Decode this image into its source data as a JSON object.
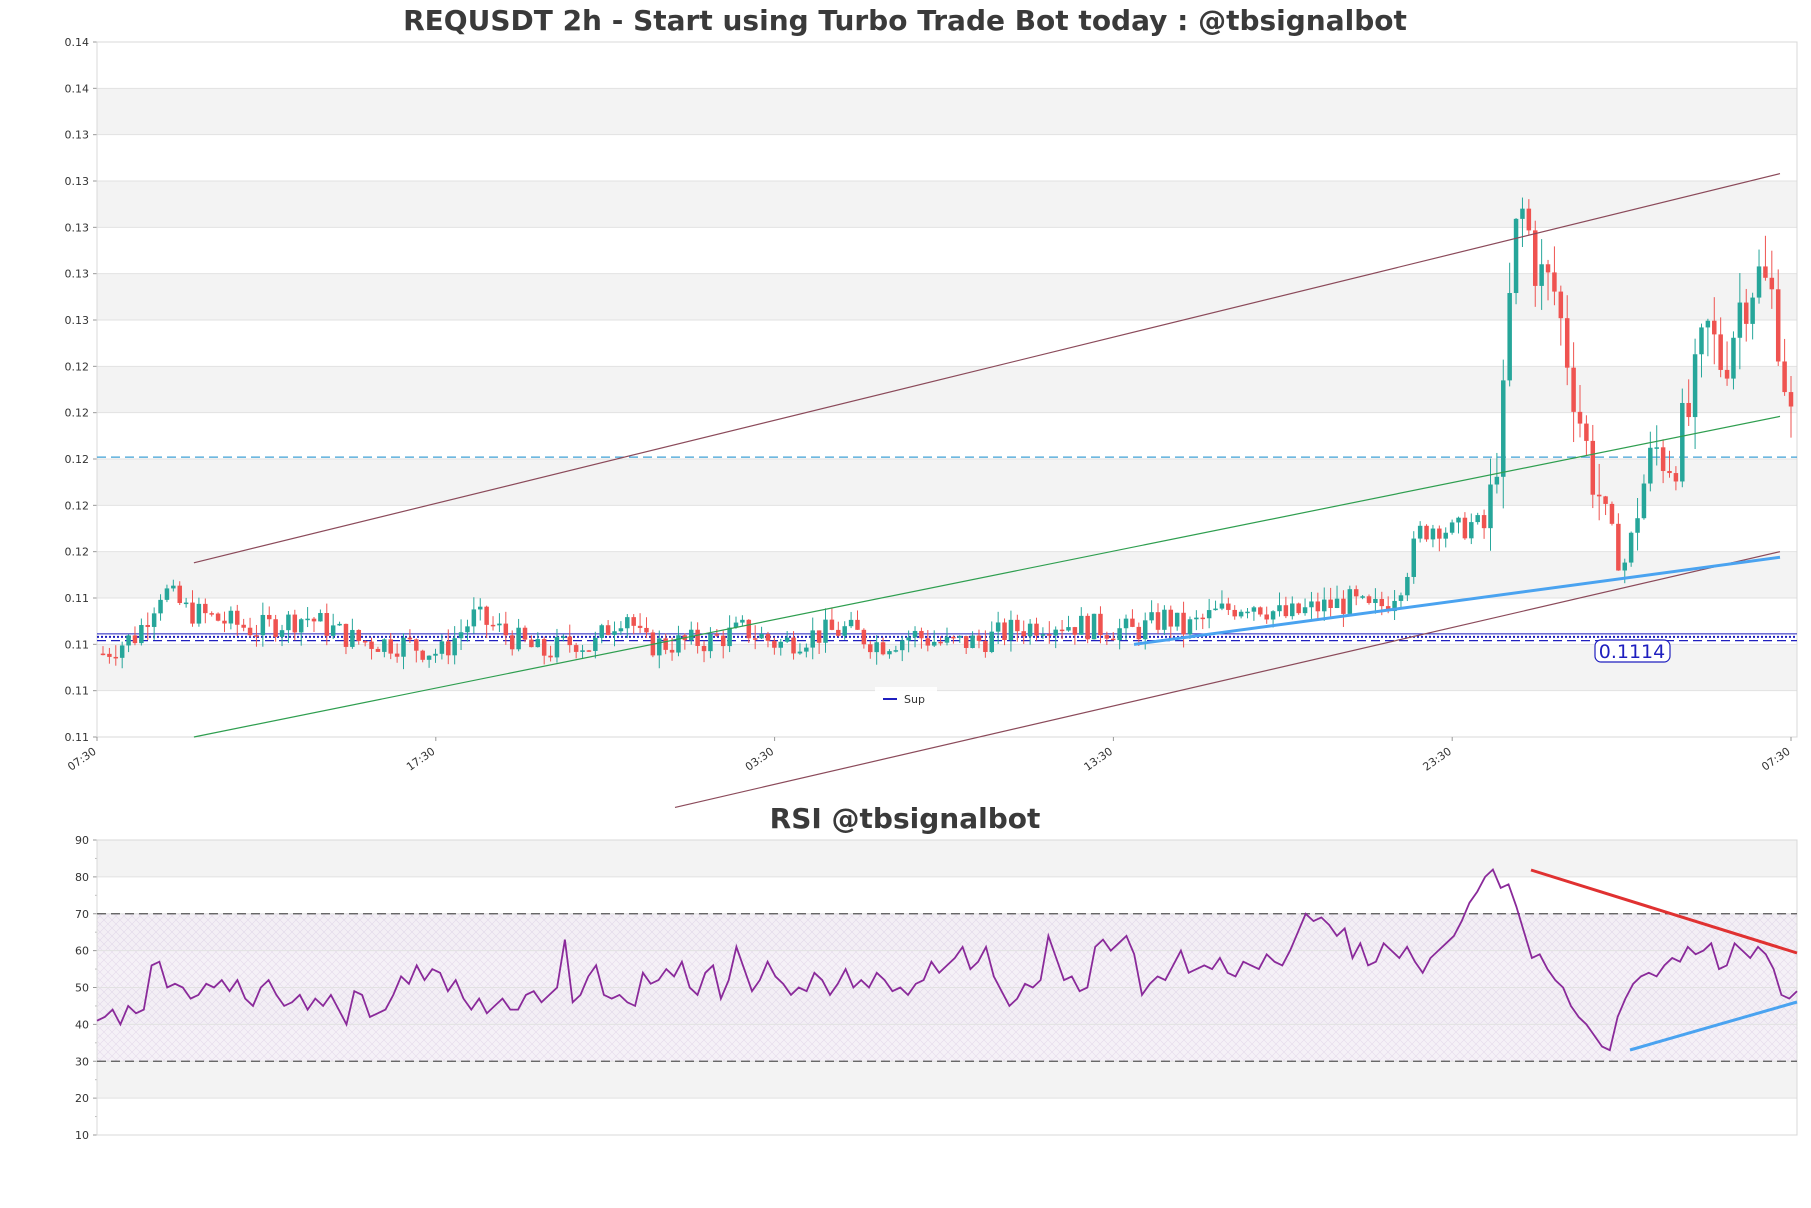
{
  "chart_data": [
    {
      "type": "candlestick",
      "title": "REQUSDT 2h - Start using Turbo Trade Bot today : @tbsignalbot",
      "y_tick_labels": [
        "0.14",
        "0.14",
        "0.13",
        "0.13",
        "0.13",
        "0.13",
        "0.13",
        "0.12",
        "0.12",
        "0.12",
        "0.12",
        "0.12",
        "0.11",
        "0.11",
        "0.11",
        "0.11"
      ],
      "ylim": [
        0.106,
        0.1435
      ],
      "x_tick_labels": [
        "07:30",
        "17:30",
        "03:30",
        "13:30",
        "23:30",
        "07:30"
      ],
      "grid": true,
      "legend": {
        "position": "bottom-center",
        "entries": [
          {
            "name": "Sup",
            "color": "#1f1fbf"
          }
        ]
      },
      "price_label": "0.1114",
      "levels": [
        {
          "name": "Sup",
          "value": 0.1114,
          "color": "#1f1fbf",
          "style": "dotted"
        },
        {
          "value": 0.1112,
          "color": "#1f1fbf",
          "style": "dashed"
        },
        {
          "value": 0.1211,
          "color": "#3fa0d6",
          "style": "dashed"
        }
      ],
      "trendlines": [
        {
          "color": "#8b4a5a",
          "points": [
            [
              0.057,
              0.1154
            ],
            [
              0.99,
              0.1364
            ]
          ]
        },
        {
          "color": "#8b4a5a",
          "points": [
            [
              0.34,
              0.1022
            ],
            [
              0.99,
              0.116
            ]
          ]
        },
        {
          "color": "#2e9e4f",
          "points": [
            [
              0.057,
              0.106
            ],
            [
              0.99,
              0.1233
            ]
          ]
        },
        {
          "color": "#4aa3f0",
          "width": 3,
          "points": [
            [
              0.61,
              0.111
            ],
            [
              0.99,
              0.1157
            ]
          ]
        }
      ],
      "price_anchors": [
        [
          0,
          0.1105
        ],
        [
          0.02,
          0.1115
        ],
        [
          0.035,
          0.114
        ],
        [
          0.05,
          0.1128
        ],
        [
          0.09,
          0.1118
        ],
        [
          0.12,
          0.1125
        ],
        [
          0.15,
          0.1112
        ],
        [
          0.18,
          0.111
        ],
        [
          0.2,
          0.1105
        ],
        [
          0.22,
          0.1125
        ],
        [
          0.24,
          0.1115
        ],
        [
          0.26,
          0.1105
        ],
        [
          0.28,
          0.1112
        ],
        [
          0.29,
          0.1108
        ],
        [
          0.3,
          0.112
        ],
        [
          0.31,
          0.1128
        ],
        [
          0.32,
          0.111
        ],
        [
          0.33,
          0.111
        ],
        [
          0.36,
          0.1112
        ],
        [
          0.38,
          0.1118
        ],
        [
          0.4,
          0.111
        ],
        [
          0.42,
          0.1115
        ],
        [
          0.44,
          0.1118
        ],
        [
          0.46,
          0.111
        ],
        [
          0.48,
          0.1115
        ],
        [
          0.5,
          0.111
        ],
        [
          0.52,
          0.1112
        ],
        [
          0.54,
          0.1118
        ],
        [
          0.56,
          0.1122
        ],
        [
          0.58,
          0.112
        ],
        [
          0.6,
          0.1118
        ],
        [
          0.61,
          0.1117
        ],
        [
          0.62,
          0.112
        ],
        [
          0.63,
          0.1125
        ],
        [
          0.64,
          0.1118
        ],
        [
          0.66,
          0.1127
        ],
        [
          0.68,
          0.1133
        ],
        [
          0.7,
          0.1125
        ],
        [
          0.72,
          0.113
        ],
        [
          0.74,
          0.1133
        ],
        [
          0.75,
          0.1128
        ],
        [
          0.76,
          0.1132
        ],
        [
          0.77,
          0.1145
        ],
        [
          0.78,
          0.117
        ],
        [
          0.79,
          0.1175
        ],
        [
          0.8,
          0.117
        ],
        [
          0.81,
          0.1175
        ],
        [
          0.82,
          0.1172
        ],
        [
          0.825,
          0.121
        ],
        [
          0.83,
          0.124
        ],
        [
          0.835,
          0.132
        ],
        [
          0.84,
          0.1345
        ],
        [
          0.845,
          0.133
        ],
        [
          0.85,
          0.131
        ],
        [
          0.86,
          0.13
        ],
        [
          0.87,
          0.1255
        ],
        [
          0.88,
          0.121
        ],
        [
          0.89,
          0.118
        ],
        [
          0.9,
          0.115
        ],
        [
          0.905,
          0.1165
        ],
        [
          0.91,
          0.119
        ],
        [
          0.92,
          0.1215
        ],
        [
          0.93,
          0.121
        ],
        [
          0.94,
          0.1235
        ],
        [
          0.95,
          0.128
        ],
        [
          0.96,
          0.126
        ],
        [
          0.97,
          0.1295
        ],
        [
          0.98,
          0.131
        ],
        [
          0.99,
          0.1295
        ],
        [
          1.0,
          0.123
        ]
      ]
    },
    {
      "type": "line",
      "title": "RSI @tbsignalbot",
      "series_name": "RSI",
      "y_tick_labels": [
        "90",
        "80",
        "70",
        "60",
        "50",
        "40",
        "30",
        "20",
        "10"
      ],
      "ylim": [
        10,
        90
      ],
      "overbought": 70,
      "oversold": 30,
      "grid": true,
      "values": [
        41,
        42,
        44,
        40,
        45,
        43,
        44,
        56,
        57,
        50,
        51,
        50,
        47,
        48,
        51,
        50,
        52,
        49,
        52,
        47,
        45,
        50,
        52,
        48,
        45,
        46,
        48,
        44,
        47,
        45,
        48,
        44,
        40,
        49,
        48,
        42,
        43,
        44,
        48,
        53,
        51,
        56,
        52,
        55,
        54,
        49,
        52,
        47,
        44,
        47,
        43,
        45,
        47,
        44,
        44,
        48,
        49,
        46,
        48,
        50,
        63,
        46,
        48,
        53,
        56,
        48,
        47,
        48,
        46,
        45,
        54,
        51,
        52,
        55,
        53,
        57,
        50,
        48,
        54,
        56,
        47,
        52,
        61,
        55,
        49,
        52,
        57,
        53,
        51,
        48,
        50,
        49,
        54,
        52,
        48,
        51,
        55,
        50,
        52,
        50,
        54,
        52,
        49,
        50,
        48,
        51,
        52,
        57,
        54,
        56,
        58,
        61,
        55,
        57,
        61,
        53,
        49,
        45,
        47,
        51,
        50,
        52,
        64,
        58,
        52,
        53,
        49,
        50,
        61,
        63,
        60,
        62,
        64,
        59,
        48,
        51,
        53,
        52,
        56,
        60,
        54,
        55,
        56,
        55,
        58,
        54,
        53,
        57,
        56,
        55,
        59,
        57,
        56,
        60,
        65,
        70,
        68,
        69,
        67,
        64,
        66,
        58,
        62,
        56,
        57,
        62,
        60,
        58,
        61,
        57,
        54,
        58,
        60,
        62,
        64,
        68,
        73,
        76,
        80,
        82,
        77,
        78,
        72,
        65,
        58,
        59,
        55,
        52,
        50,
        45,
        42,
        40,
        37,
        34,
        33,
        42,
        47,
        51,
        53,
        54,
        53,
        56,
        58,
        57,
        61,
        59,
        60,
        62,
        55,
        56,
        62,
        60,
        58,
        61,
        59,
        55,
        48,
        47,
        49
      ]
    }
  ]
}
